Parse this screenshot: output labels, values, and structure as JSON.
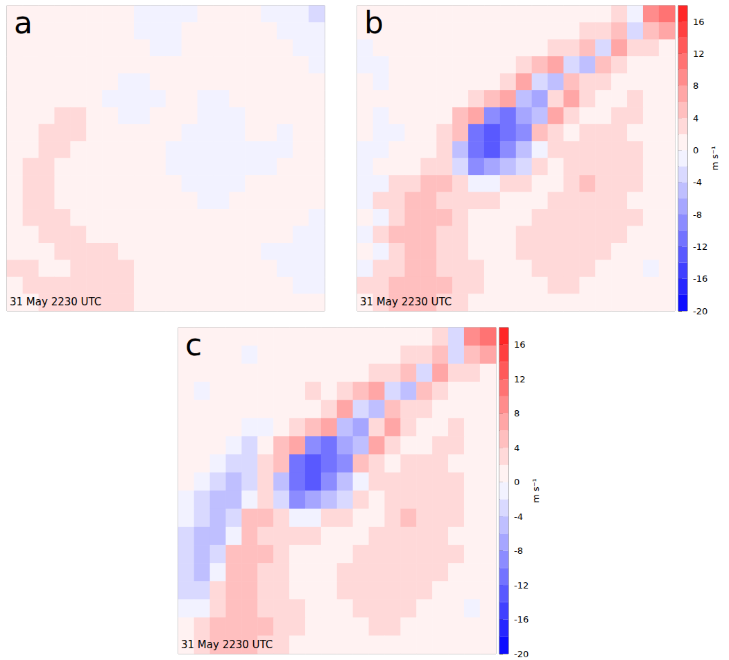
{
  "chart_data": [
    {
      "type": "heatmap",
      "title": "a",
      "annotations": [
        "31 May 2230 UTC"
      ],
      "tick_labels": false,
      "levels": [
        -20,
        -18,
        -16,
        -14,
        -12,
        -10,
        -8,
        -6,
        -4,
        -2,
        0,
        2,
        4,
        6,
        8,
        10,
        12,
        14,
        16,
        18
      ],
      "colors": [
        "#0d0dff",
        "#2626ff",
        "#4040ff",
        "#5959ff",
        "#7373ff",
        "#8c8cff",
        "#a6a6ff",
        "#bfbfff",
        "#d9d9ff",
        "#f2f2ff",
        "#fff2f2",
        "#ffd9d9",
        "#ffbfbf",
        "#ffa6a6",
        "#ff8c8c",
        "#ff7373",
        "#ff5959",
        "#ff4040",
        "#ff2626"
      ],
      "cells": [
        [
          1,
          1,
          1,
          1,
          1,
          1,
          1,
          0,
          -1,
          -1,
          -1,
          -1,
          1,
          1,
          1,
          1,
          -1,
          -1,
          -1,
          -3
        ],
        [
          1,
          1,
          1,
          1,
          1,
          1,
          1,
          1,
          -1,
          -1,
          -1,
          1,
          1,
          1,
          1,
          1,
          1,
          -1,
          -1,
          -1
        ],
        [
          1,
          1,
          1,
          1,
          1,
          1,
          1,
          1,
          1,
          -1,
          -1,
          1,
          1,
          1,
          1,
          1,
          1,
          1,
          -1,
          -1
        ],
        [
          1,
          1,
          1,
          1,
          1,
          1,
          1,
          1,
          1,
          1,
          1,
          1,
          1,
          1,
          1,
          1,
          1,
          1,
          1,
          -1
        ],
        [
          1,
          1,
          1,
          1,
          1,
          1,
          1,
          -1,
          -1,
          1,
          1,
          1,
          1,
          1,
          1,
          1,
          1,
          1,
          1,
          1
        ],
        [
          1,
          1,
          1,
          1,
          1,
          1,
          -1,
          -1,
          -1,
          -1,
          1,
          1,
          -1,
          -1,
          1,
          1,
          1,
          1,
          1,
          1
        ],
        [
          1,
          1,
          1,
          3,
          3,
          1,
          1,
          -1,
          -1,
          1,
          1,
          1,
          -1,
          -1,
          -1,
          1,
          1,
          1,
          1,
          1
        ],
        [
          1,
          1,
          3,
          3,
          3,
          1,
          1,
          1,
          1,
          1,
          1,
          -1,
          -1,
          -1,
          -1,
          1,
          1,
          -1,
          1,
          1
        ],
        [
          1,
          1,
          3,
          3,
          1,
          1,
          1,
          1,
          1,
          1,
          -1,
          -1,
          -1,
          -1,
          -1,
          -1,
          -1,
          -1,
          1,
          1
        ],
        [
          1,
          3,
          3,
          1,
          1,
          1,
          1,
          1,
          1,
          1,
          -1,
          -1,
          -1,
          -1,
          -1,
          -1,
          -1,
          1,
          1,
          1
        ],
        [
          1,
          3,
          3,
          1,
          1,
          1,
          1,
          1,
          1,
          1,
          1,
          -1,
          -1,
          -1,
          -1,
          1,
          1,
          1,
          1,
          1
        ],
        [
          1,
          3,
          3,
          1,
          1,
          1,
          1,
          1,
          1,
          1,
          1,
          1,
          -1,
          -1,
          1,
          1,
          1,
          1,
          1,
          1
        ],
        [
          1,
          3,
          3,
          3,
          1,
          1,
          1,
          1,
          1,
          1,
          1,
          1,
          1,
          1,
          1,
          1,
          1,
          1,
          1,
          -1
        ],
        [
          1,
          1,
          3,
          3,
          3,
          1,
          1,
          1,
          1,
          1,
          1,
          1,
          1,
          1,
          1,
          1,
          1,
          1,
          -1,
          -1
        ],
        [
          1,
          1,
          1,
          3,
          3,
          3,
          3,
          1,
          1,
          1,
          1,
          1,
          1,
          1,
          1,
          1,
          -1,
          -1,
          -1,
          -1
        ],
        [
          3,
          3,
          1,
          1,
          3,
          3,
          3,
          3,
          1,
          1,
          1,
          1,
          1,
          1,
          1,
          1,
          1,
          -1,
          -1,
          -1
        ],
        [
          1,
          3,
          3,
          3,
          3,
          3,
          3,
          3,
          1,
          1,
          1,
          1,
          1,
          1,
          1,
          1,
          1,
          1,
          -1,
          -1
        ],
        [
          1,
          1,
          3,
          3,
          3,
          3,
          3,
          3,
          1,
          1,
          1,
          1,
          1,
          1,
          1,
          1,
          1,
          1,
          1,
          1
        ]
      ]
    },
    {
      "type": "heatmap",
      "title": "b",
      "annotations": [
        "31 May 2230 UTC"
      ],
      "tick_labels": false,
      "levels": [
        -20,
        -18,
        -16,
        -14,
        -12,
        -10,
        -8,
        -6,
        -4,
        -2,
        0,
        2,
        4,
        6,
        8,
        10,
        12,
        14,
        16,
        18
      ],
      "colors": [
        "#0d0dff",
        "#2626ff",
        "#4040ff",
        "#5959ff",
        "#7373ff",
        "#8c8cff",
        "#a6a6ff",
        "#bfbfff",
        "#d9d9ff",
        "#f2f2ff",
        "#fff2f2",
        "#ffd9d9",
        "#ffbfbf",
        "#ffa6a6",
        "#ff8c8c",
        "#ff7373",
        "#ff5959",
        "#ff4040",
        "#ff2626"
      ],
      "colorbar": {
        "ylim": [
          -20,
          18
        ],
        "yticks": [
          -20,
          -16,
          -12,
          -8,
          -4,
          0,
          4,
          8,
          12,
          16
        ],
        "label": "m s⁻¹"
      },
      "cells": [
        [
          1,
          1,
          1,
          1,
          1,
          1,
          1,
          1,
          1,
          1,
          1,
          1,
          1,
          1,
          1,
          1,
          2,
          -2,
          8,
          10
        ],
        [
          1,
          1,
          1,
          1,
          1,
          1,
          1,
          1,
          1,
          1,
          1,
          1,
          1,
          1,
          2,
          2,
          4,
          -4,
          4,
          6
        ],
        [
          -1,
          1,
          1,
          1,
          1,
          1,
          1,
          1,
          1,
          1,
          1,
          1,
          2,
          3,
          4,
          -4,
          6,
          2,
          2,
          1
        ],
        [
          -1,
          -1,
          1,
          1,
          1,
          1,
          1,
          1,
          1,
          1,
          2,
          4,
          6,
          -4,
          -6,
          4,
          2,
          1,
          1,
          1
        ],
        [
          1,
          -1,
          1,
          1,
          1,
          1,
          1,
          1,
          1,
          3,
          6,
          -4,
          -6,
          4,
          2,
          2,
          1,
          1,
          1,
          1
        ],
        [
          1,
          1,
          1,
          1,
          1,
          1,
          1,
          3,
          4,
          6,
          -6,
          -8,
          2,
          6,
          2,
          1,
          1,
          2,
          1,
          1
        ],
        [
          1,
          -1,
          1,
          1,
          1,
          1,
          4,
          6,
          -10,
          -12,
          -8,
          -6,
          6,
          2,
          1,
          1,
          2,
          2,
          1,
          1
        ],
        [
          1,
          -2,
          -1,
          1,
          1,
          3,
          5,
          -12,
          -14,
          -12,
          -10,
          4,
          2,
          1,
          2,
          2,
          3,
          1,
          1,
          1
        ],
        [
          -1,
          -2,
          1,
          1,
          1,
          3,
          -6,
          -12,
          -14,
          -10,
          -6,
          -2,
          2,
          2,
          3,
          3,
          2,
          2,
          1,
          1
        ],
        [
          -2,
          1,
          1,
          1,
          2,
          2,
          -4,
          -10,
          -8,
          -6,
          -4,
          2,
          1,
          2,
          3,
          3,
          3,
          2,
          1,
          1
        ],
        [
          -1,
          -2,
          2,
          3,
          4,
          4,
          2,
          -2,
          -2,
          2,
          2,
          1,
          1,
          2,
          4,
          3,
          3,
          2,
          1,
          1
        ],
        [
          -2,
          2,
          3,
          4,
          5,
          3,
          2,
          2,
          2,
          1,
          1,
          1,
          2,
          3,
          3,
          3,
          2,
          1,
          1,
          1
        ],
        [
          1,
          -2,
          3,
          5,
          4,
          4,
          2,
          1,
          1,
          1,
          1,
          2,
          2,
          3,
          3,
          2,
          2,
          2,
          1,
          1
        ],
        [
          -2,
          2,
          4,
          5,
          5,
          3,
          2,
          1,
          1,
          1,
          2,
          2,
          3,
          3,
          2,
          2,
          2,
          1,
          1,
          1
        ],
        [
          1,
          -2,
          3,
          5,
          4,
          3,
          2,
          1,
          1,
          1,
          2,
          2,
          3,
          2,
          2,
          2,
          1,
          1,
          1,
          1
        ],
        [
          -2,
          2,
          3,
          4,
          5,
          3,
          2,
          2,
          1,
          1,
          1,
          2,
          2,
          2,
          2,
          1,
          1,
          1,
          -1,
          1
        ],
        [
          2,
          3,
          4,
          5,
          4,
          4,
          2,
          2,
          1,
          1,
          1,
          1,
          2,
          2,
          1,
          1,
          1,
          1,
          1,
          1
        ],
        [
          1,
          3,
          4,
          4,
          4,
          3,
          2,
          1,
          1,
          1,
          1,
          1,
          1,
          1,
          1,
          1,
          1,
          1,
          1,
          1
        ]
      ]
    },
    {
      "type": "heatmap",
      "title": "c",
      "annotations": [
        "31 May 2230 UTC"
      ],
      "tick_labels": false,
      "levels": [
        -20,
        -18,
        -16,
        -14,
        -12,
        -10,
        -8,
        -6,
        -4,
        -2,
        0,
        2,
        4,
        6,
        8,
        10,
        12,
        14,
        16,
        18
      ],
      "colors": [
        "#0d0dff",
        "#2626ff",
        "#4040ff",
        "#5959ff",
        "#7373ff",
        "#8c8cff",
        "#a6a6ff",
        "#bfbfff",
        "#d9d9ff",
        "#f2f2ff",
        "#fff2f2",
        "#ffd9d9",
        "#ffbfbf",
        "#ffa6a6",
        "#ff8c8c",
        "#ff7373",
        "#ff5959",
        "#ff4040",
        "#ff2626"
      ],
      "colorbar": {
        "ylim": [
          -20,
          18
        ],
        "yticks": [
          -20,
          -16,
          -12,
          -8,
          -4,
          0,
          4,
          8,
          12,
          16
        ],
        "label": "m s⁻¹"
      },
      "cells": [
        [
          1,
          1,
          1,
          1,
          1,
          1,
          1,
          1,
          1,
          1,
          1,
          1,
          1,
          1,
          1,
          1,
          2,
          -4,
          8,
          10
        ],
        [
          1,
          1,
          1,
          1,
          -1,
          1,
          1,
          1,
          1,
          1,
          1,
          1,
          1,
          1,
          2,
          2,
          4,
          -4,
          4,
          6
        ],
        [
          1,
          1,
          1,
          1,
          1,
          1,
          1,
          1,
          1,
          1,
          1,
          1,
          2,
          3,
          4,
          -4,
          6,
          2,
          2,
          1
        ],
        [
          1,
          -1,
          1,
          1,
          1,
          1,
          1,
          1,
          2,
          1,
          2,
          4,
          6,
          -4,
          -6,
          4,
          2,
          1,
          1,
          1
        ],
        [
          1,
          1,
          1,
          1,
          1,
          1,
          1,
          1,
          1,
          3,
          6,
          -4,
          -6,
          4,
          2,
          2,
          1,
          1,
          1,
          1
        ],
        [
          1,
          1,
          1,
          1,
          -2,
          -1,
          1,
          3,
          4,
          6,
          -6,
          -8,
          2,
          6,
          2,
          1,
          1,
          2,
          1,
          1
        ],
        [
          1,
          1,
          1,
          -2,
          -4,
          1,
          4,
          6,
          -10,
          -12,
          -8,
          -6,
          6,
          2,
          1,
          1,
          2,
          2,
          1,
          1
        ],
        [
          1,
          1,
          -2,
          -4,
          -4,
          3,
          5,
          -12,
          -14,
          -12,
          -10,
          4,
          2,
          1,
          2,
          2,
          3,
          1,
          1,
          1
        ],
        [
          1,
          -2,
          -4,
          -6,
          -4,
          3,
          -6,
          -12,
          -14,
          -10,
          -6,
          -2,
          2,
          2,
          3,
          3,
          2,
          2,
          1,
          1
        ],
        [
          -2,
          -4,
          -6,
          -6,
          -2,
          2,
          -4,
          -10,
          -8,
          -6,
          -4,
          2,
          1,
          2,
          3,
          3,
          3,
          2,
          1,
          1
        ],
        [
          -2,
          -4,
          -6,
          -4,
          4,
          4,
          2,
          -2,
          -2,
          2,
          2,
          1,
          1,
          2,
          4,
          3,
          3,
          2,
          1,
          1
        ],
        [
          -4,
          -6,
          -6,
          -2,
          5,
          3,
          2,
          2,
          2,
          1,
          1,
          1,
          2,
          3,
          3,
          3,
          2,
          1,
          1,
          1
        ],
        [
          -4,
          -6,
          -4,
          4,
          4,
          4,
          2,
          1,
          1,
          1,
          1,
          2,
          2,
          3,
          3,
          2,
          2,
          2,
          1,
          1
        ],
        [
          -4,
          -6,
          -2,
          5,
          5,
          3,
          2,
          1,
          1,
          1,
          2,
          2,
          3,
          3,
          2,
          2,
          2,
          1,
          1,
          1
        ],
        [
          -4,
          -4,
          3,
          5,
          4,
          3,
          2,
          1,
          1,
          1,
          2,
          2,
          3,
          2,
          2,
          2,
          1,
          1,
          1,
          1
        ],
        [
          -2,
          -2,
          3,
          4,
          5,
          3,
          2,
          2,
          1,
          1,
          1,
          2,
          2,
          2,
          2,
          1,
          1,
          1,
          -1,
          1
        ],
        [
          1,
          2,
          4,
          5,
          4,
          4,
          2,
          2,
          1,
          1,
          1,
          1,
          2,
          2,
          1,
          1,
          1,
          1,
          1,
          1
        ],
        [
          1,
          3,
          4,
          4,
          4,
          3,
          2,
          1,
          1,
          1,
          1,
          1,
          1,
          1,
          1,
          1,
          1,
          1,
          1,
          1
        ]
      ]
    }
  ]
}
